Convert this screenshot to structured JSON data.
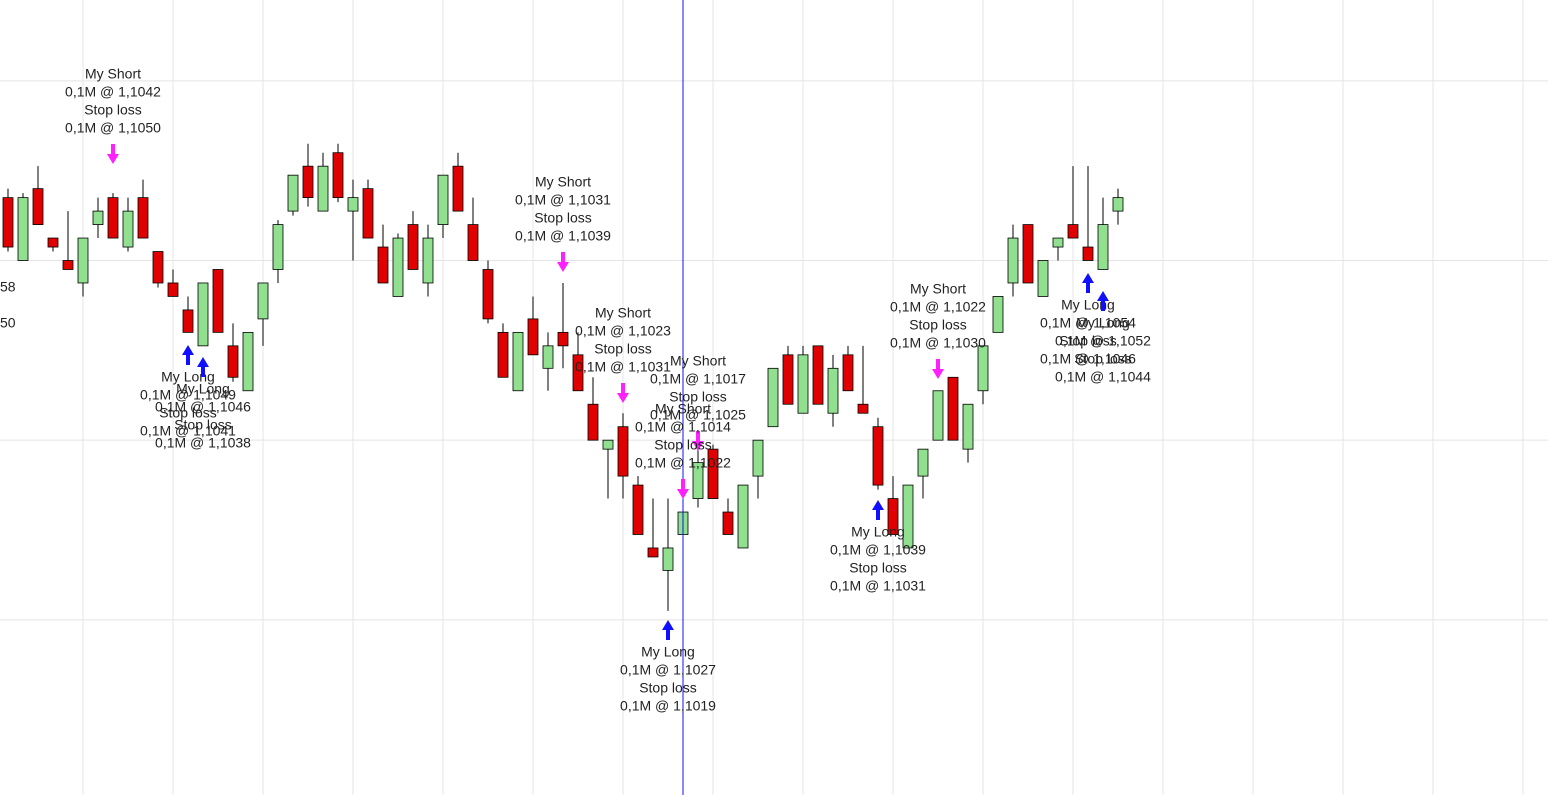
{
  "chart_data": {
    "type": "candlestick",
    "categories": [
      null,
      null,
      null,
      null,
      null,
      null,
      null,
      null,
      null,
      null,
      null,
      null,
      null,
      null,
      null,
      null,
      null,
      null,
      null,
      null,
      null,
      null,
      null,
      null,
      null,
      null,
      null,
      null,
      null,
      null,
      null,
      null,
      null,
      null,
      null,
      null,
      null,
      null,
      null,
      null,
      null,
      null,
      null,
      null,
      null,
      null,
      null,
      null,
      null,
      null,
      null,
      null,
      null,
      null,
      null,
      null,
      null,
      null,
      null,
      null,
      null,
      null,
      null,
      null,
      null,
      null,
      null,
      null,
      null,
      null,
      null,
      null,
      null,
      null,
      null
    ],
    "open": [
      1.1078,
      1.1064,
      1.108,
      1.1069,
      1.1064,
      1.1059,
      1.1072,
      1.1078,
      1.1067,
      1.1078,
      1.1066,
      1.1059,
      1.1053,
      1.1045,
      1.1062,
      1.1045,
      1.1035,
      1.1051,
      1.1062,
      1.1075,
      1.1085,
      1.1075,
      1.1088,
      1.1075,
      1.108,
      1.1067,
      1.1056,
      1.1072,
      1.1059,
      1.1072,
      1.1085,
      1.1072,
      1.1062,
      1.1048,
      1.1035,
      1.1051,
      1.104,
      1.1048,
      1.1043,
      1.1032,
      1.1022,
      1.1027,
      1.1014,
      1.1,
      1.0995,
      1.1003,
      1.1011,
      1.1022,
      1.1008,
      1.1,
      1.1016,
      1.1027,
      1.1043,
      1.103,
      1.1045,
      1.103,
      1.1043,
      1.1032,
      1.1027,
      1.1011,
      1.1,
      1.1016,
      1.1024,
      1.1038,
      1.1022,
      1.1035,
      1.1048,
      1.1059,
      1.1072,
      1.1056,
      1.1067,
      1.1072,
      1.1067,
      1.1062,
      1.1075
    ],
    "high": [
      1.108,
      1.1079,
      1.1085,
      1.1069,
      1.1075,
      1.1069,
      1.1078,
      1.1079,
      1.1078,
      1.1082,
      1.1066,
      1.1062,
      1.1056,
      1.1059,
      1.1062,
      1.105,
      1.1048,
      1.1059,
      1.1073,
      1.1083,
      1.109,
      1.1088,
      1.109,
      1.1082,
      1.1082,
      1.1072,
      1.107,
      1.1075,
      1.1072,
      1.1083,
      1.1088,
      1.1078,
      1.1064,
      1.105,
      1.1048,
      1.1056,
      1.1048,
      1.1059,
      1.1048,
      1.1038,
      1.1024,
      1.103,
      1.1016,
      1.1011,
      1.1011,
      1.1011,
      1.1024,
      1.1023,
      1.1011,
      1.1014,
      1.1024,
      1.104,
      1.1045,
      1.1045,
      1.1045,
      1.1043,
      1.1045,
      1.1045,
      1.1029,
      1.1016,
      1.1014,
      1.1022,
      1.1035,
      1.1038,
      1.1032,
      1.1045,
      1.1056,
      1.1072,
      1.1072,
      1.1064,
      1.1069,
      1.1085,
      1.1085,
      1.1078,
      1.108
    ],
    "low": [
      1.1066,
      1.1064,
      1.1072,
      1.1066,
      1.1062,
      1.1056,
      1.1069,
      1.1069,
      1.1066,
      1.1069,
      1.1058,
      1.1056,
      1.1048,
      1.1045,
      1.1048,
      1.1037,
      1.1035,
      1.1045,
      1.1059,
      1.1074,
      1.1076,
      1.1075,
      1.1077,
      1.1064,
      1.1069,
      1.1059,
      1.1056,
      1.1062,
      1.1056,
      1.1069,
      1.1075,
      1.1064,
      1.105,
      1.1038,
      1.1035,
      1.1043,
      1.1035,
      1.104,
      1.1035,
      1.1024,
      1.1011,
      1.1011,
      1.1003,
      1.0998,
      1.0986,
      1.0998,
      1.1009,
      1.1011,
      1.1003,
      1.1,
      1.1011,
      1.1027,
      1.1032,
      1.103,
      1.1032,
      1.1027,
      1.1035,
      1.103,
      1.1013,
      1.1003,
      1.1,
      1.1011,
      1.1024,
      1.1024,
      1.1019,
      1.1032,
      1.1048,
      1.1056,
      1.1059,
      1.1056,
      1.1064,
      1.1069,
      1.1064,
      1.1062,
      1.1072
    ],
    "close": [
      1.1067,
      1.1078,
      1.1072,
      1.1067,
      1.1062,
      1.1069,
      1.1075,
      1.1069,
      1.1075,
      1.1069,
      1.1059,
      1.1056,
      1.1048,
      1.1059,
      1.1048,
      1.1038,
      1.1048,
      1.1059,
      1.1072,
      1.1083,
      1.1078,
      1.1085,
      1.1078,
      1.1078,
      1.1069,
      1.1059,
      1.1069,
      1.1062,
      1.1069,
      1.1083,
      1.1075,
      1.1064,
      1.1051,
      1.1038,
      1.1048,
      1.1043,
      1.1045,
      1.1045,
      1.1035,
      1.1024,
      1.1024,
      1.1016,
      1.1003,
      1.0998,
      1.1,
      1.1008,
      1.1019,
      1.1011,
      1.1003,
      1.1014,
      1.1024,
      1.104,
      1.1032,
      1.1043,
      1.1032,
      1.104,
      1.1035,
      1.103,
      1.1014,
      1.1003,
      1.1014,
      1.1022,
      1.1035,
      1.1024,
      1.1032,
      1.1045,
      1.1056,
      1.1069,
      1.1059,
      1.1064,
      1.1069,
      1.1069,
      1.1064,
      1.1072,
      1.1078
    ],
    "up_color": "#90e090",
    "down_color": "#e00000",
    "ylim": [
      1.0945,
      1.1122
    ],
    "yticks": [
      1.1104,
      1.1064,
      1.1024,
      1.0984
    ],
    "grid": true,
    "edge_labels": [
      "58",
      "50"
    ],
    "annotations": [
      {
        "lines": [
          "My Short",
          "0,1M @ 1,1042",
          "Stop loss",
          "0,1M @ 1,1050"
        ]
      },
      {
        "lines": [
          "My Short",
          "0,1M @ 1,1031",
          "Stop loss",
          "0,1M @ 1,1039"
        ]
      },
      {
        "lines": [
          "My Short",
          "0,1M @ 1,1023",
          "Stop loss",
          "0,1M @ 1,1031"
        ]
      },
      {
        "lines": [
          "My Short",
          "0,1M @ 1,1017",
          "Stop loss",
          "0,1M @ 1,1025"
        ]
      },
      {
        "lines": [
          "My Short",
          "0,1M @ 1,1014",
          "Stop loss",
          "0,1M @ 1,1022"
        ]
      },
      {
        "lines": [
          "My Short",
          "0,1M @ 1,1022",
          "Stop loss",
          "0,1M @ 1,1030"
        ]
      },
      {
        "lines": [
          "My Long",
          "0,1M @ 1,1049",
          "Stop loss",
          "0,1M @ 1,1041"
        ]
      },
      {
        "lines": [
          "My Long",
          "0,1M @ 1,1046",
          "Stop loss",
          "0,1M @ 1,1038"
        ]
      },
      {
        "lines": [
          "My Long",
          "0,1M @ 1,1027",
          "Stop loss",
          "0,1M @ 1,1019"
        ]
      },
      {
        "lines": [
          "My Long",
          "0,1M @ 1,1039",
          "Stop loss",
          "0,1M @ 1,1031"
        ]
      },
      {
        "lines": [
          "My Long",
          "0,1M @ 1,1054",
          "Stop loss",
          "0,1M @ 1,1046"
        ]
      },
      {
        "lines": [
          "My Long",
          "0,1M @ 1,1052",
          "Stop loss",
          "0,1M @ 1,1044"
        ]
      }
    ]
  }
}
